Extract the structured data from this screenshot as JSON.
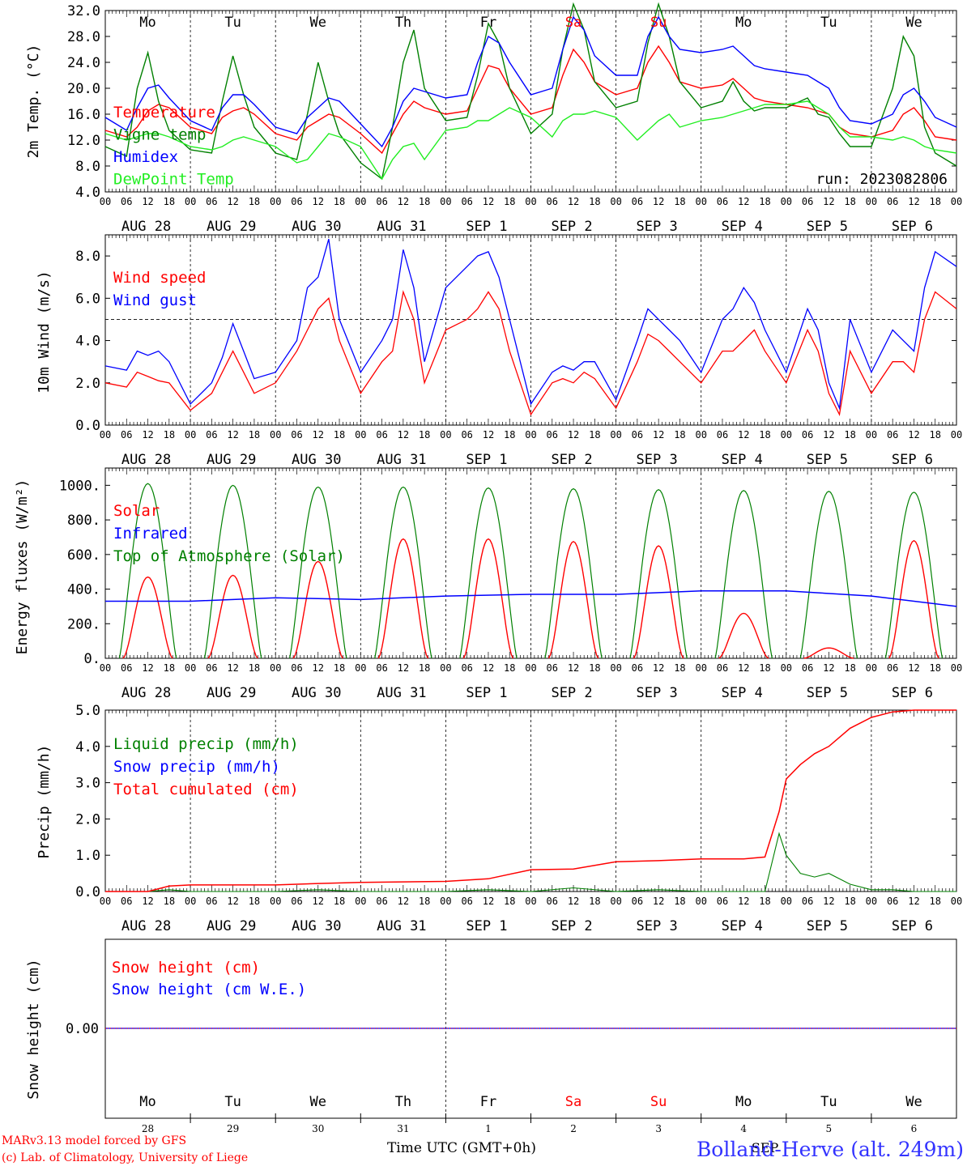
{
  "chart_data": [
    {
      "type": "line",
      "ylabel": "2m Temp. (°C)",
      "ylim": [
        4.0,
        32.0
      ],
      "yticks": [
        "4.0",
        "8.0",
        "12.0",
        "16.0",
        "20.0",
        "24.0",
        "28.0",
        "32.0"
      ],
      "day_labels_top": [
        "Mo",
        "Tu",
        "We",
        "Th",
        "Fr",
        "Sa",
        "Su",
        "Mo",
        "Tu",
        "We"
      ],
      "date_labels": [
        "AUG 28",
        "AUG 29",
        "AUG 30",
        "AUG 31",
        "SEP  1",
        "SEP  2",
        "SEP  3",
        "SEP  4",
        "SEP  5",
        "SEP  6"
      ],
      "annotation": "run: 2023082806",
      "x_hours": [
        0,
        6,
        9,
        12,
        15,
        18,
        24,
        30,
        33,
        36,
        39,
        42,
        48,
        54,
        57,
        60,
        63,
        66,
        72,
        78,
        81,
        84,
        87,
        90,
        96,
        102,
        105,
        108,
        111,
        114,
        120,
        126,
        129,
        132,
        135,
        138,
        144,
        150,
        153,
        156,
        159,
        162,
        168,
        174,
        177,
        180,
        183,
        186,
        192,
        198,
        201,
        204,
        207,
        210,
        216,
        222,
        225,
        228,
        231,
        234,
        240
      ],
      "series": [
        {
          "name": "Temperature",
          "color": "#ff0000",
          "values": [
            13.5,
            12.5,
            14.0,
            16.5,
            17.5,
            17.0,
            14.0,
            13.0,
            15.5,
            16.5,
            17.0,
            16.0,
            13.0,
            12.0,
            14.0,
            15.0,
            16.0,
            15.5,
            13.0,
            10.0,
            13.0,
            16.0,
            18.0,
            17.0,
            16.0,
            16.5,
            20.0,
            23.5,
            23.0,
            20.0,
            16.0,
            17.0,
            22.0,
            26.0,
            24.0,
            21.0,
            19.0,
            20.0,
            24.0,
            26.5,
            24.0,
            21.0,
            20.0,
            20.5,
            21.5,
            20.0,
            18.5,
            18.0,
            17.5,
            17.0,
            16.5,
            16.0,
            14.0,
            13.0,
            12.5,
            13.5,
            16.0,
            17.0,
            15.0,
            12.5,
            12.0
          ]
        },
        {
          "name": "Vigne temp",
          "color": "#008000",
          "values": [
            11.0,
            9.5,
            20.0,
            25.5,
            18.0,
            13.5,
            10.5,
            10.0,
            18.0,
            25.0,
            19.0,
            14.0,
            10.0,
            9.0,
            16.0,
            24.0,
            18.0,
            13.0,
            8.5,
            6.0,
            14.0,
            24.0,
            29.0,
            20.0,
            15.0,
            15.5,
            22.0,
            30.0,
            27.0,
            20.0,
            13.0,
            16.0,
            26.0,
            33.0,
            29.0,
            21.0,
            17.0,
            18.0,
            27.0,
            33.0,
            28.0,
            21.0,
            17.0,
            18.0,
            21.0,
            18.0,
            16.5,
            17.0,
            17.0,
            18.5,
            16.0,
            15.5,
            13.0,
            11.0,
            11.0,
            20.0,
            28.0,
            25.0,
            14.0,
            10.0,
            8.0
          ]
        },
        {
          "name": "Humidex",
          "color": "#0000ff",
          "values": [
            15.5,
            13.5,
            17.0,
            20.0,
            20.5,
            18.5,
            15.0,
            13.5,
            17.0,
            19.0,
            19.0,
            17.5,
            14.0,
            13.0,
            15.5,
            17.0,
            18.5,
            18.0,
            14.5,
            11.0,
            14.0,
            18.0,
            20.0,
            19.5,
            18.5,
            19.0,
            24.0,
            28.0,
            27.0,
            24.0,
            19.0,
            20.0,
            26.0,
            31.0,
            29.0,
            25.0,
            22.0,
            22.0,
            28.0,
            31.0,
            28.0,
            26.0,
            25.5,
            26.0,
            26.5,
            25.0,
            23.5,
            23.0,
            22.5,
            22.0,
            21.0,
            20.0,
            17.0,
            15.0,
            14.5,
            16.0,
            19.0,
            20.0,
            18.0,
            15.5,
            14.0
          ]
        },
        {
          "name": "DewPoint Temp",
          "color": "#22ee22",
          "values": [
            13.0,
            12.0,
            12.5,
            13.0,
            13.0,
            12.5,
            11.0,
            10.5,
            11.0,
            12.0,
            12.5,
            12.0,
            11.0,
            8.5,
            9.0,
            11.0,
            13.0,
            12.5,
            11.0,
            6.0,
            9.0,
            11.0,
            11.5,
            9.0,
            13.5,
            14.0,
            15.0,
            15.0,
            16.0,
            17.0,
            15.5,
            12.5,
            15.0,
            16.0,
            16.0,
            16.5,
            15.5,
            12.0,
            13.5,
            15.0,
            16.0,
            14.0,
            15.0,
            15.5,
            16.0,
            16.5,
            17.0,
            17.5,
            17.5,
            18.0,
            17.0,
            16.0,
            14.0,
            12.5,
            12.5,
            12.0,
            12.5,
            12.0,
            11.0,
            10.5,
            10.0
          ]
        }
      ]
    },
    {
      "type": "line",
      "ylabel": "10m Wind (m/s)",
      "ylim": [
        0.0,
        9.0
      ],
      "yticks": [
        "0.0",
        "2.0",
        "4.0",
        "6.0",
        "8.0"
      ],
      "date_labels": [
        "AUG 28",
        "AUG 29",
        "AUG 30",
        "AUG 31",
        "SEP  1",
        "SEP  2",
        "SEP  3",
        "SEP  4",
        "SEP  5",
        "SEP  6"
      ],
      "reference_line": 5.0,
      "x_hours": [
        0,
        6,
        9,
        12,
        15,
        18,
        24,
        30,
        33,
        36,
        39,
        42,
        48,
        54,
        57,
        60,
        63,
        66,
        72,
        78,
        81,
        84,
        87,
        90,
        96,
        102,
        105,
        108,
        111,
        114,
        120,
        126,
        129,
        132,
        135,
        138,
        144,
        150,
        153,
        156,
        159,
        162,
        168,
        174,
        177,
        180,
        183,
        186,
        192,
        198,
        201,
        204,
        207,
        210,
        216,
        222,
        225,
        228,
        231,
        234,
        240
      ],
      "series": [
        {
          "name": "Wind speed",
          "color": "#ff0000",
          "values": [
            2.0,
            1.8,
            2.5,
            2.3,
            2.1,
            2.0,
            0.7,
            1.5,
            2.5,
            3.5,
            2.5,
            1.5,
            2.0,
            3.5,
            4.5,
            5.5,
            6.0,
            4.0,
            1.5,
            3.0,
            3.5,
            6.3,
            5.0,
            2.0,
            4.5,
            5.0,
            5.5,
            6.3,
            5.5,
            3.5,
            0.5,
            2.0,
            2.2,
            2.0,
            2.5,
            2.2,
            0.8,
            3.0,
            4.3,
            4.0,
            3.5,
            3.0,
            2.0,
            3.5,
            3.5,
            4.0,
            4.5,
            3.5,
            2.0,
            4.5,
            3.5,
            1.5,
            0.5,
            3.5,
            1.5,
            3.0,
            3.0,
            2.5,
            5.0,
            6.3,
            5.5
          ]
        },
        {
          "name": "Wind gust",
          "color": "#0000ff",
          "values": [
            2.8,
            2.6,
            3.5,
            3.3,
            3.5,
            3.0,
            1.0,
            2.0,
            3.2,
            4.8,
            3.5,
            2.2,
            2.5,
            4.0,
            6.5,
            7.0,
            8.8,
            5.0,
            2.5,
            4.0,
            5.0,
            8.3,
            6.5,
            3.0,
            6.5,
            7.5,
            8.0,
            8.2,
            7.0,
            5.0,
            1.0,
            2.5,
            2.8,
            2.6,
            3.0,
            3.0,
            1.2,
            4.0,
            5.5,
            5.0,
            4.5,
            4.0,
            2.5,
            5.0,
            5.5,
            6.5,
            5.8,
            4.5,
            2.5,
            5.5,
            4.5,
            2.0,
            0.8,
            5.0,
            2.5,
            4.5,
            4.0,
            3.5,
            6.5,
            8.2,
            7.5
          ]
        }
      ]
    },
    {
      "type": "line",
      "ylabel": "Energy fluxes (W/m²)",
      "ylim": [
        0,
        1100
      ],
      "yticks": [
        "0.",
        "200.",
        "400.",
        "600.",
        "800.",
        "1000."
      ],
      "date_labels": [
        "AUG 28",
        "AUG 29",
        "AUG 30",
        "AUG 31",
        "SEP  1",
        "SEP  2",
        "SEP  3",
        "SEP  4",
        "SEP  5",
        "SEP  6"
      ],
      "solar_peaks": [
        470,
        480,
        560,
        690,
        690,
        675,
        650,
        260,
        60,
        680
      ],
      "toa_peaks": [
        1010,
        1000,
        990,
        990,
        985,
        980,
        975,
        970,
        965,
        960
      ],
      "infrared_daily": [
        330,
        330,
        350,
        340,
        360,
        370,
        370,
        390,
        390,
        360,
        300
      ],
      "series": [
        {
          "name": "Solar",
          "color": "#ff0000"
        },
        {
          "name": "Infrared",
          "color": "#0000ff"
        },
        {
          "name": "Top of Atmosphere (Solar)",
          "color": "#008000"
        }
      ]
    },
    {
      "type": "line",
      "ylabel": "Precip (mm/h)",
      "ylim": [
        0.0,
        5.0
      ],
      "yticks": [
        "0.0",
        "1.0",
        "2.0",
        "3.0",
        "4.0",
        "5.0"
      ],
      "date_labels": [
        "AUG 28",
        "AUG 29",
        "AUG 30",
        "AUG 31",
        "SEP  1",
        "SEP  2",
        "SEP  3",
        "SEP  4",
        "SEP  5",
        "SEP  6"
      ],
      "x_hours": [
        0,
        12,
        18,
        24,
        48,
        60,
        72,
        96,
        108,
        120,
        132,
        144,
        156,
        168,
        180,
        186,
        190,
        192,
        196,
        200,
        204,
        210,
        216,
        222,
        228,
        232,
        240
      ],
      "series": [
        {
          "name": "Liquid precip (mm/h)",
          "color": "#008000",
          "values": [
            0,
            0,
            0.05,
            0,
            0,
            0.05,
            0,
            0,
            0.05,
            0,
            0.1,
            0,
            0.05,
            0,
            0,
            0,
            1.6,
            1.0,
            0.5,
            0.4,
            0.5,
            0.2,
            0.05,
            0.05,
            0,
            0,
            0
          ]
        },
        {
          "name": "Snow precip (mm/h)",
          "color": "#0000ff"
        },
        {
          "name": "Total cumulated (cm)",
          "color": "#ff0000",
          "values": [
            0,
            0,
            0.15,
            0.18,
            0.18,
            0.22,
            0.25,
            0.28,
            0.35,
            0.6,
            0.62,
            0.82,
            0.85,
            0.9,
            0.9,
            0.95,
            2.2,
            3.1,
            3.5,
            3.8,
            4.0,
            4.5,
            4.8,
            4.95,
            5.0,
            5.0,
            5.0
          ]
        }
      ]
    },
    {
      "type": "line",
      "ylabel": "Snow height (cm)",
      "yticks": [
        "0.00"
      ],
      "day_labels_bottom": [
        "Mo",
        "Tu",
        "We",
        "Th",
        "Fr",
        "Sa",
        "Su",
        "Mo",
        "Tu",
        "We"
      ],
      "day_numbers": [
        "28",
        "29",
        "30",
        "31",
        "1",
        "2",
        "3",
        "4",
        "5",
        "6"
      ],
      "month_label": "SEP",
      "series": [
        {
          "name": "Snow height (cm)",
          "color": "#ff0000",
          "values": [
            0,
            0
          ]
        },
        {
          "name": "Snow height (cm W.E.)",
          "color": "#0000ff",
          "values": [
            0,
            0
          ]
        }
      ]
    }
  ],
  "hour_tick_labels": [
    "00",
    "06",
    "12",
    "18"
  ],
  "weekend_color": "#ff0000",
  "weekend_days": [
    "Sa",
    "Su"
  ],
  "footer": {
    "model_line": "MARv3.13 model forced by GFS",
    "lab_line": "(c) Lab. of Climatology, University of Liege",
    "axis_title": "Time UTC (GMT+0h)",
    "station": "Bolland-Herve (alt. 249m)"
  }
}
